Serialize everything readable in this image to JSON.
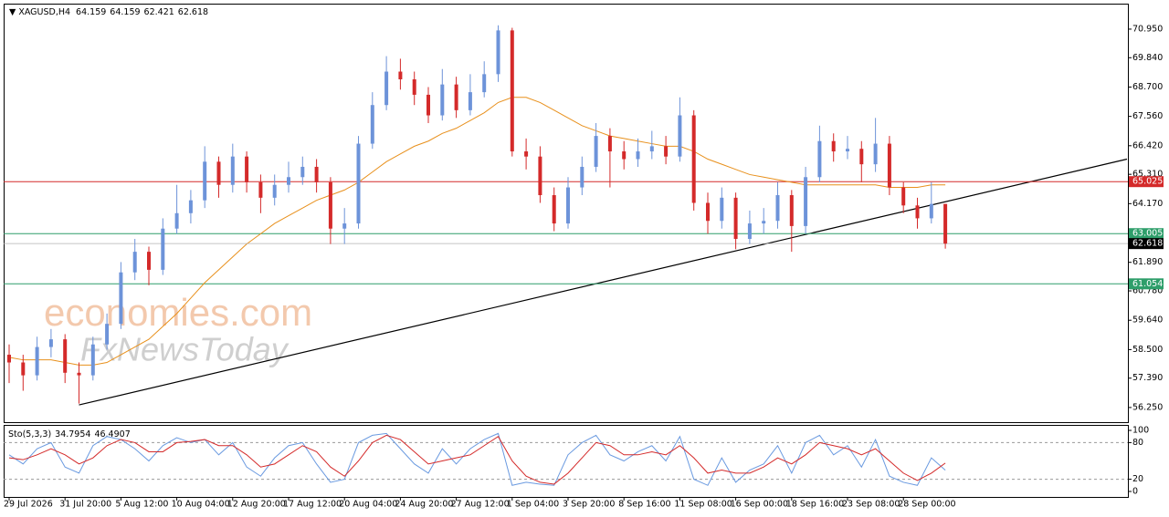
{
  "chart_data": [
    {
      "type": "candlestick",
      "title": "XAGUSD,H4",
      "watermarks": [
        "economies.com",
        "FxNewsToday"
      ],
      "up_color": "#6d93d9",
      "down_color": "#d42a2a",
      "categories": [
        "29 Jul 2026",
        null,
        null,
        null,
        "31 Jul 20:00",
        null,
        null,
        null,
        "5 Aug 12:00",
        null,
        null,
        null,
        "10 Aug 04:00",
        null,
        null,
        null,
        "12 Aug 20:00",
        null,
        null,
        null,
        "17 Aug 12:00",
        null,
        null,
        null,
        "20 Aug 04:00",
        null,
        null,
        null,
        "24 Aug 20:00",
        null,
        null,
        null,
        "27 Aug 12:00",
        null,
        null,
        null,
        "1 Sep 04:00",
        null,
        null,
        null,
        "3 Sep 20:00",
        null,
        null,
        null,
        "8 Sep 16:00",
        null,
        null,
        null,
        "11 Sep 08:00",
        null,
        null,
        null,
        "16 Sep 00:00",
        null,
        null,
        null,
        "18 Sep 16:00",
        null,
        null,
        null,
        "23 Sep 08:00",
        null,
        null,
        null,
        "28 Sep 00:00",
        null,
        null,
        null
      ],
      "open": [
        58.3,
        58.0,
        57.5,
        58.6,
        58.9,
        57.6,
        57.5,
        58.7,
        59.5,
        61.5,
        62.3,
        61.6,
        63.2,
        63.8,
        64.3,
        65.8,
        64.9,
        66.0,
        65.0,
        64.4,
        64.9,
        65.2,
        65.6,
        65.0,
        63.2,
        63.4,
        66.5,
        68.0,
        69.3,
        69.0,
        68.4,
        67.6,
        68.8,
        67.8,
        68.5,
        69.2,
        70.9,
        66.2,
        66.0,
        64.5,
        63.4,
        64.8,
        65.6,
        66.8,
        66.2,
        65.9,
        66.2,
        66.4,
        66.0,
        67.6,
        64.2,
        63.5,
        64.4,
        62.8,
        63.4,
        63.5,
        64.5,
        63.3,
        65.2,
        66.6,
        66.2,
        66.3,
        65.7,
        66.5,
        64.8,
        64.1,
        63.6,
        64.159
      ],
      "high": [
        58.7,
        58.3,
        59.0,
        59.3,
        59.1,
        58.0,
        59.0,
        59.9,
        61.9,
        62.8,
        62.5,
        63.6,
        64.9,
        64.7,
        66.4,
        66.0,
        66.5,
        66.2,
        65.3,
        65.3,
        65.8,
        66.0,
        65.9,
        65.2,
        64.0,
        66.8,
        68.5,
        69.9,
        69.8,
        69.3,
        68.7,
        69.4,
        69.1,
        69.2,
        69.7,
        71.1,
        71.0,
        66.7,
        66.4,
        64.8,
        65.2,
        66.0,
        67.3,
        67.1,
        66.6,
        66.7,
        67.0,
        66.8,
        68.3,
        67.8,
        64.6,
        64.8,
        64.6,
        63.9,
        64.0,
        65.0,
        64.7,
        65.6,
        67.2,
        66.9,
        66.8,
        66.6,
        67.5,
        66.8,
        65.0,
        64.4,
        65.0,
        64.159
      ],
      "low": [
        57.2,
        56.9,
        57.3,
        58.2,
        57.2,
        56.4,
        57.3,
        58.5,
        59.3,
        61.2,
        61.0,
        61.4,
        63.0,
        63.4,
        64.0,
        64.4,
        64.6,
        64.6,
        63.8,
        64.1,
        64.6,
        64.9,
        64.6,
        62.6,
        62.6,
        63.2,
        66.3,
        67.8,
        68.6,
        68.0,
        67.3,
        67.4,
        67.5,
        67.6,
        68.3,
        68.9,
        66.0,
        65.5,
        64.2,
        63.1,
        63.2,
        64.5,
        65.4,
        64.8,
        65.5,
        65.6,
        65.9,
        65.7,
        65.8,
        63.9,
        63.0,
        63.2,
        62.4,
        62.6,
        63.0,
        63.2,
        62.3,
        63.0,
        65.0,
        65.8,
        65.9,
        65.0,
        65.4,
        64.5,
        63.8,
        63.2,
        63.4,
        62.421
      ],
      "close": [
        58.0,
        57.5,
        58.6,
        58.9,
        57.6,
        57.5,
        58.7,
        59.5,
        61.5,
        62.3,
        61.6,
        63.2,
        63.8,
        64.3,
        65.8,
        64.9,
        66.0,
        65.0,
        64.4,
        64.9,
        65.2,
        65.6,
        65.0,
        63.2,
        63.4,
        66.5,
        68.0,
        69.3,
        69.0,
        68.4,
        67.6,
        68.8,
        67.8,
        68.5,
        69.2,
        70.9,
        66.2,
        66.0,
        64.5,
        63.4,
        64.8,
        65.6,
        66.8,
        66.2,
        65.9,
        66.2,
        66.4,
        66.0,
        67.6,
        64.2,
        63.5,
        64.4,
        62.8,
        63.4,
        63.5,
        64.5,
        63.3,
        65.2,
        66.6,
        66.2,
        66.3,
        65.7,
        66.5,
        64.8,
        64.1,
        63.6,
        64.159,
        62.618
      ],
      "ma": {
        "color": "#e8901c",
        "values": [
          58.2,
          58.1,
          58.1,
          58.1,
          58.0,
          57.9,
          57.9,
          58.0,
          58.3,
          58.6,
          58.9,
          59.4,
          59.9,
          60.5,
          61.1,
          61.6,
          62.1,
          62.6,
          63.0,
          63.4,
          63.7,
          64.0,
          64.3,
          64.5,
          64.7,
          65.0,
          65.4,
          65.8,
          66.1,
          66.4,
          66.6,
          66.9,
          67.1,
          67.4,
          67.7,
          68.1,
          68.3,
          68.3,
          68.1,
          67.8,
          67.5,
          67.2,
          67.0,
          66.8,
          66.7,
          66.6,
          66.5,
          66.4,
          66.4,
          66.2,
          65.9,
          65.7,
          65.5,
          65.3,
          65.2,
          65.1,
          65.0,
          64.9,
          64.9,
          64.9,
          64.9,
          64.9,
          64.9,
          64.8,
          64.8,
          64.8,
          64.9,
          64.9
        ]
      },
      "trendline": {
        "color": "#000000",
        "start": {
          "index": 5,
          "price": 56.35
        },
        "end": {
          "index": 80,
          "price": 65.9
        }
      },
      "levels": [
        {
          "value": 65.025,
          "color": "#d42a2a"
        },
        {
          "value": 63.005,
          "color": "#2e9e6a"
        },
        {
          "value": 61.054,
          "color": "#2e9e6a"
        }
      ],
      "ylim": [
        55.68,
        71.94
      ],
      "yticks": [
        {
          "value": 70.95,
          "label": "70.950"
        },
        {
          "value": 69.84,
          "label": "69.840"
        },
        {
          "value": 68.7,
          "label": "68.700"
        },
        {
          "value": 67.56,
          "label": "67.560"
        },
        {
          "value": 66.42,
          "label": "66.420"
        },
        {
          "value": 65.31,
          "label": "65.310"
        },
        {
          "value": 64.17,
          "label": "64.170"
        },
        {
          "value": 63.03,
          "label": "63.030"
        },
        {
          "value": 61.89,
          "label": "61.890"
        },
        {
          "value": 60.78,
          "label": "60.780"
        },
        {
          "value": 59.64,
          "label": "59.640"
        },
        {
          "value": 58.5,
          "label": "58.500"
        },
        {
          "value": 57.39,
          "label": "57.390"
        },
        {
          "value": 56.25,
          "label": "56.250"
        }
      ]
    },
    {
      "type": "line",
      "title": "Sto(5,3,3)",
      "series": [
        {
          "color": "#6a9ae0",
          "values": [
            60,
            45,
            70,
            80,
            40,
            30,
            75,
            90,
            85,
            70,
            50,
            75,
            88,
            80,
            85,
            60,
            80,
            40,
            25,
            55,
            75,
            80,
            45,
            15,
            20,
            80,
            92,
            95,
            70,
            45,
            30,
            70,
            45,
            70,
            85,
            95,
            10,
            15,
            12,
            10,
            60,
            80,
            92,
            60,
            50,
            65,
            75,
            50,
            90,
            20,
            10,
            55,
            15,
            35,
            45,
            75,
            30,
            80,
            92,
            60,
            75,
            40,
            85,
            25,
            15,
            10,
            55,
            34.7954
          ]
        },
        {
          "color": "#d42a2a",
          "values": [
            55,
            52,
            60,
            70,
            60,
            45,
            55,
            75,
            85,
            80,
            65,
            65,
            80,
            82,
            85,
            75,
            75,
            60,
            40,
            45,
            60,
            75,
            65,
            40,
            25,
            50,
            80,
            92,
            85,
            65,
            45,
            50,
            55,
            60,
            75,
            90,
            50,
            25,
            15,
            12,
            30,
            55,
            80,
            75,
            60,
            60,
            65,
            60,
            75,
            55,
            30,
            35,
            30,
            30,
            40,
            55,
            45,
            60,
            80,
            75,
            70,
            60,
            70,
            50,
            30,
            18,
            30,
            46.4907
          ]
        }
      ],
      "ylim": [
        -9,
        109
      ],
      "yticks": [
        100,
        80,
        20,
        0
      ],
      "levels": [
        80,
        20
      ]
    }
  ]
}
